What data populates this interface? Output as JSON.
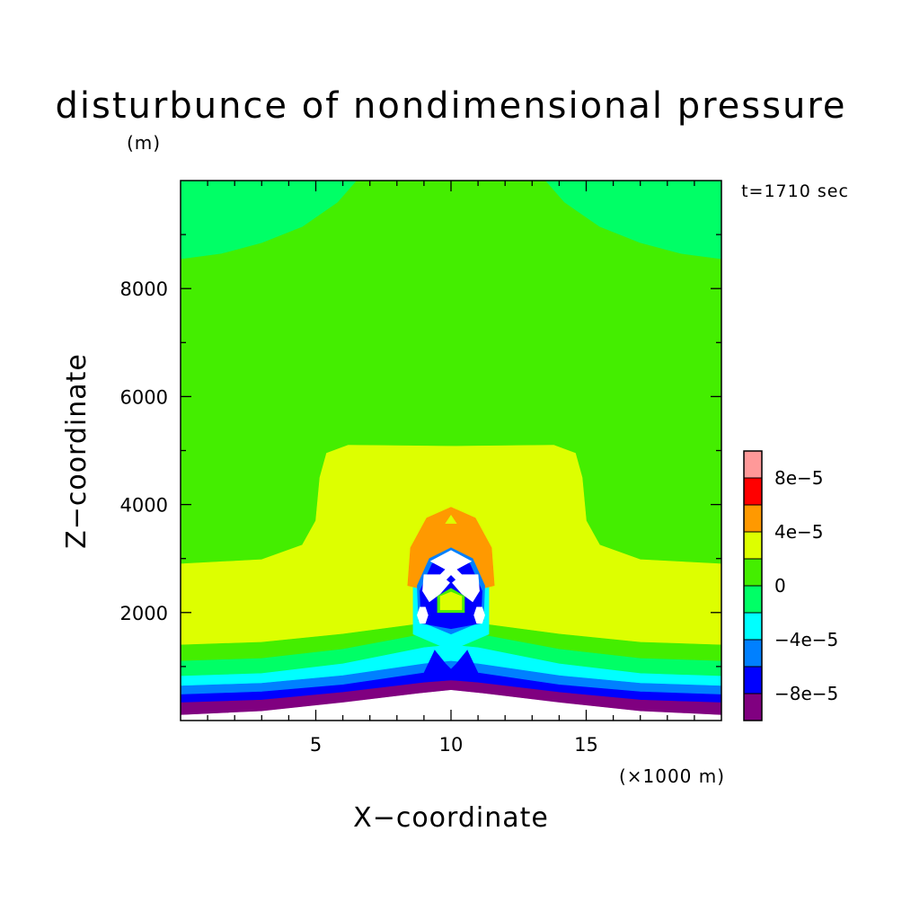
{
  "chart_data": {
    "type": "heatmap",
    "title": "disturbunce of nondimensional pressure",
    "time_label": "t=1710 sec",
    "xlabel": "X−coordinate",
    "ylabel": "Z−coordinate",
    "x_unit": "(×1000 m)",
    "y_unit": "(m)",
    "xlim": [
      0,
      20
    ],
    "ylim": [
      0,
      10000
    ],
    "x_ticks": [
      {
        "value": 5,
        "label": "5"
      },
      {
        "value": 10,
        "label": "10"
      },
      {
        "value": 15,
        "label": "15"
      }
    ],
    "y_ticks": [
      {
        "value": 2000,
        "label": "2000"
      },
      {
        "value": 4000,
        "label": "4000"
      },
      {
        "value": 6000,
        "label": "6000"
      },
      {
        "value": 8000,
        "label": "8000"
      }
    ],
    "colorbar": {
      "levels": [
        {
          "color": "#800080",
          "lo": -0.0001,
          "hi": -8e-05
        },
        {
          "color": "#0000ff",
          "lo": -8e-05,
          "hi": -6e-05
        },
        {
          "color": "#0080ff",
          "lo": -6e-05,
          "hi": -4e-05
        },
        {
          "color": "#00ffff",
          "lo": -4e-05,
          "hi": -2e-05
        },
        {
          "color": "#00ff66",
          "lo": -2e-05,
          "hi": 0
        },
        {
          "color": "#44ee00",
          "lo": 0,
          "hi": 2e-05
        },
        {
          "color": "#ddff00",
          "lo": 2e-05,
          "hi": 4e-05
        },
        {
          "color": "#ff9900",
          "lo": 4e-05,
          "hi": 6e-05
        },
        {
          "color": "#ff0000",
          "lo": 6e-05,
          "hi": 8e-05
        },
        {
          "color": "#ff9999",
          "lo": 8e-05,
          "hi": 0.0001
        }
      ],
      "labels": [
        {
          "boundary": 1,
          "label": "−8e−5"
        },
        {
          "boundary": 3,
          "label": "−4e−5"
        },
        {
          "boundary": 5,
          "label": "0"
        },
        {
          "boundary": 7,
          "label": "4e−5"
        },
        {
          "boundary": 9,
          "label": "8e−5"
        }
      ]
    },
    "colors": {
      "white": "#ffffff",
      "purple": "#800080",
      "blue": "#0000ff",
      "azure": "#0080ff",
      "cyan": "#00ffff",
      "springgreen": "#00ff66",
      "green": "#44ee00",
      "yellow": "#ddff00",
      "orange": "#ff9900",
      "red": "#ff0000",
      "pink": "#ff9999"
    },
    "regions": [
      {
        "name": "background",
        "color": "green",
        "shape": "rect",
        "pts": [
          [
            0,
            0
          ],
          [
            20,
            10000
          ]
        ]
      },
      {
        "name": "upper-left-negative",
        "color": "springgreen",
        "pts": [
          [
            0,
            10000
          ],
          [
            6.5,
            10000
          ],
          [
            5.8,
            9600
          ],
          [
            4.5,
            9150
          ],
          [
            3,
            8850
          ],
          [
            1.5,
            8650
          ],
          [
            0,
            8550
          ]
        ]
      },
      {
        "name": "upper-right-negative",
        "color": "springgreen",
        "pts": [
          [
            20,
            10000
          ],
          [
            13.5,
            10000
          ],
          [
            14.2,
            9600
          ],
          [
            15.5,
            9150
          ],
          [
            17,
            8850
          ],
          [
            18.5,
            8650
          ],
          [
            20,
            8550
          ]
        ]
      },
      {
        "name": "mid-positive",
        "color": "yellow",
        "pts": [
          [
            0,
            2900
          ],
          [
            3,
            2980
          ],
          [
            4.5,
            3250
          ],
          [
            5.0,
            3700
          ],
          [
            5.15,
            4500
          ],
          [
            5.4,
            4950
          ],
          [
            6.2,
            5100
          ],
          [
            10,
            5080
          ],
          [
            13.8,
            5100
          ],
          [
            14.6,
            4950
          ],
          [
            14.85,
            4500
          ],
          [
            15,
            3700
          ],
          [
            15.5,
            3250
          ],
          [
            17,
            2980
          ],
          [
            20,
            2900
          ],
          [
            20,
            1300
          ],
          [
            0,
            1300
          ]
        ]
      },
      {
        "name": "band-green",
        "color": "green",
        "pts": [
          [
            0,
            1400
          ],
          [
            3,
            1450
          ],
          [
            6,
            1600
          ],
          [
            9,
            1800
          ],
          [
            10,
            1820
          ],
          [
            11,
            1800
          ],
          [
            14,
            1600
          ],
          [
            17,
            1450
          ],
          [
            20,
            1400
          ],
          [
            20,
            0
          ],
          [
            0,
            0
          ]
        ]
      },
      {
        "name": "band-springgreen",
        "color": "springgreen",
        "pts": [
          [
            0,
            1100
          ],
          [
            3,
            1150
          ],
          [
            6,
            1320
          ],
          [
            9,
            1600
          ],
          [
            10,
            1650
          ],
          [
            11,
            1600
          ],
          [
            14,
            1320
          ],
          [
            17,
            1150
          ],
          [
            20,
            1100
          ],
          [
            20,
            0
          ],
          [
            0,
            0
          ]
        ]
      },
      {
        "name": "band-cyan",
        "color": "cyan",
        "pts": [
          [
            0,
            820
          ],
          [
            3,
            870
          ],
          [
            6,
            1050
          ],
          [
            9,
            1350
          ],
          [
            10,
            1400
          ],
          [
            11,
            1350
          ],
          [
            14,
            1050
          ],
          [
            17,
            870
          ],
          [
            20,
            820
          ],
          [
            20,
            0
          ],
          [
            0,
            0
          ]
        ]
      },
      {
        "name": "band-azure",
        "color": "azure",
        "pts": [
          [
            0,
            640
          ],
          [
            3,
            690
          ],
          [
            6,
            830
          ],
          [
            9,
            1050
          ],
          [
            10,
            1100
          ],
          [
            11,
            1050
          ],
          [
            14,
            830
          ],
          [
            17,
            690
          ],
          [
            20,
            640
          ],
          [
            20,
            0
          ],
          [
            0,
            0
          ]
        ]
      },
      {
        "name": "band-blue",
        "color": "blue",
        "pts": [
          [
            0,
            480
          ],
          [
            3,
            530
          ],
          [
            6,
            660
          ],
          [
            9,
            880
          ],
          [
            9.4,
            1300
          ],
          [
            9.8,
            1050
          ],
          [
            10,
            950
          ],
          [
            10.2,
            1050
          ],
          [
            10.6,
            1300
          ],
          [
            11,
            880
          ],
          [
            14,
            660
          ],
          [
            17,
            530
          ],
          [
            20,
            480
          ],
          [
            20,
            0
          ],
          [
            0,
            0
          ]
        ]
      },
      {
        "name": "band-purple",
        "color": "purple",
        "pts": [
          [
            0,
            330
          ],
          [
            3,
            380
          ],
          [
            6,
            520
          ],
          [
            9,
            700
          ],
          [
            10,
            740
          ],
          [
            11,
            700
          ],
          [
            14,
            520
          ],
          [
            17,
            380
          ],
          [
            20,
            330
          ],
          [
            20,
            0
          ],
          [
            0,
            0
          ]
        ]
      },
      {
        "name": "bottom-white",
        "color": "white",
        "pts": [
          [
            0,
            0
          ],
          [
            0,
            100
          ],
          [
            3,
            170
          ],
          [
            6,
            330
          ],
          [
            8.8,
            500
          ],
          [
            10,
            560
          ],
          [
            11.2,
            500
          ],
          [
            14,
            330
          ],
          [
            17,
            170
          ],
          [
            20,
            100
          ],
          [
            20,
            0
          ]
        ]
      },
      {
        "name": "core-cyan",
        "color": "cyan",
        "pts": [
          [
            8.6,
            1600
          ],
          [
            8.6,
            2500
          ],
          [
            9.1,
            3050
          ],
          [
            10,
            3250
          ],
          [
            10.9,
            3050
          ],
          [
            11.4,
            2500
          ],
          [
            11.4,
            1600
          ],
          [
            10,
            1300
          ]
        ]
      },
      {
        "name": "orange-dome",
        "color": "orange",
        "pts": [
          [
            8.4,
            2500
          ],
          [
            8.5,
            3200
          ],
          [
            9.1,
            3750
          ],
          [
            10,
            3950
          ],
          [
            10.9,
            3750
          ],
          [
            11.5,
            3200
          ],
          [
            11.6,
            2500
          ],
          [
            11.2,
            2450
          ],
          [
            10.9,
            2900
          ],
          [
            10,
            3200
          ],
          [
            9.1,
            2900
          ],
          [
            8.8,
            2450
          ]
        ]
      },
      {
        "name": "orange-notch",
        "color": "yellow",
        "pts": [
          [
            9.8,
            3650
          ],
          [
            10,
            3800
          ],
          [
            10.2,
            3650
          ]
        ]
      },
      {
        "name": "core-azure",
        "color": "azure",
        "pts": [
          [
            8.8,
            1850
          ],
          [
            8.75,
            2500
          ],
          [
            9.2,
            3000
          ],
          [
            10,
            3200
          ],
          [
            10.8,
            3000
          ],
          [
            11.25,
            2500
          ],
          [
            11.2,
            1850
          ],
          [
            10,
            1600
          ]
        ]
      },
      {
        "name": "core-blue",
        "color": "blue",
        "pts": [
          [
            8.9,
            1800
          ],
          [
            8.85,
            2400
          ],
          [
            9.3,
            2900
          ],
          [
            10,
            3100
          ],
          [
            10.7,
            2900
          ],
          [
            11.15,
            2400
          ],
          [
            11.1,
            1800
          ],
          [
            10,
            1700
          ]
        ]
      },
      {
        "name": "core-purple",
        "color": "purple",
        "pts": [
          [
            9.7,
            2900
          ],
          [
            10,
            3050
          ],
          [
            10.3,
            2900
          ],
          [
            10,
            2750
          ]
        ]
      },
      {
        "name": "core-green-pocket",
        "color": "green",
        "pts": [
          [
            9.5,
            2000
          ],
          [
            9.5,
            2300
          ],
          [
            10,
            2450
          ],
          [
            10.5,
            2300
          ],
          [
            10.5,
            2000
          ]
        ]
      },
      {
        "name": "core-yellow-pocket",
        "color": "yellow",
        "pts": [
          [
            9.6,
            2050
          ],
          [
            9.6,
            2300
          ],
          [
            10,
            2380
          ],
          [
            10.4,
            2300
          ],
          [
            10.4,
            2050
          ]
        ]
      },
      {
        "name": "white-x-upper",
        "color": "white",
        "pts": [
          [
            9.25,
            2950
          ],
          [
            10,
            3150
          ],
          [
            10.75,
            2950
          ],
          [
            10.2,
            2800
          ],
          [
            10.9,
            2450
          ],
          [
            10.3,
            2550
          ],
          [
            10,
            2700
          ],
          [
            9.7,
            2550
          ],
          [
            9.1,
            2450
          ],
          [
            9.8,
            2800
          ]
        ]
      },
      {
        "name": "white-arm-left",
        "color": "white",
        "pts": [
          [
            9.0,
            2700
          ],
          [
            8.95,
            2400
          ],
          [
            9.2,
            2200
          ],
          [
            9.6,
            2350
          ],
          [
            9.95,
            2550
          ],
          [
            9.6,
            2700
          ]
        ]
      },
      {
        "name": "white-arm-right",
        "color": "white",
        "pts": [
          [
            11.0,
            2700
          ],
          [
            11.05,
            2400
          ],
          [
            10.8,
            2200
          ],
          [
            10.4,
            2350
          ],
          [
            10.05,
            2550
          ],
          [
            10.4,
            2700
          ]
        ]
      },
      {
        "name": "white-blob-left",
        "color": "white",
        "pts": [
          [
            8.75,
            1950
          ],
          [
            8.85,
            1800
          ],
          [
            9.05,
            1800
          ],
          [
            9.15,
            1950
          ],
          [
            9.05,
            2100
          ],
          [
            8.85,
            2100
          ]
        ]
      },
      {
        "name": "white-blob-right",
        "color": "white",
        "pts": [
          [
            11.25,
            1950
          ],
          [
            11.15,
            1800
          ],
          [
            10.95,
            1800
          ],
          [
            10.85,
            1950
          ],
          [
            10.95,
            2100
          ],
          [
            11.15,
            2100
          ]
        ]
      },
      {
        "name": "white-dot",
        "color": "white",
        "pts": [
          [
            9.85,
            2960
          ],
          [
            10,
            3020
          ],
          [
            10.15,
            2960
          ],
          [
            10,
            2900
          ]
        ]
      },
      {
        "name": "spike-blue-left",
        "color": "blue",
        "pts": [
          [
            9.0,
            800
          ],
          [
            9.4,
            1300
          ],
          [
            9.7,
            900
          ]
        ]
      },
      {
        "name": "spike-blue-right",
        "color": "blue",
        "pts": [
          [
            10.3,
            900
          ],
          [
            10.6,
            1300
          ],
          [
            11.0,
            800
          ]
        ]
      }
    ]
  }
}
